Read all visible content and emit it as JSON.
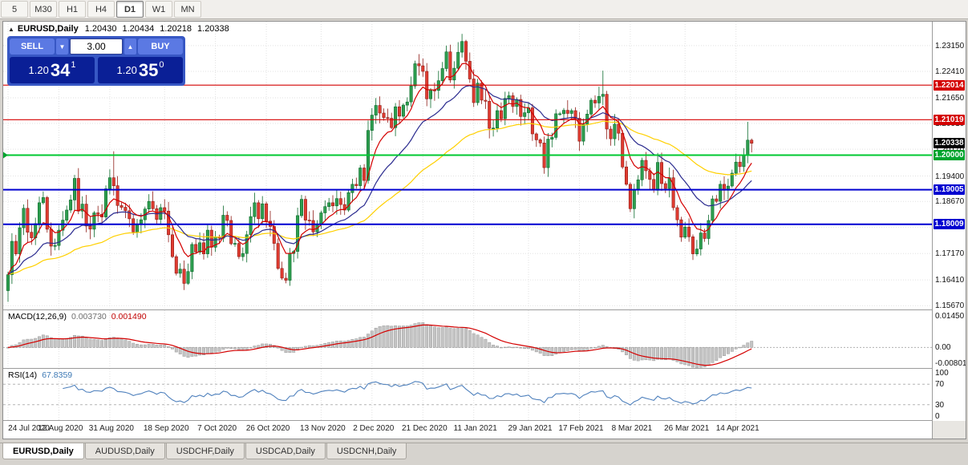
{
  "toolbar": {
    "periods": [
      {
        "label": "5",
        "active": false
      },
      {
        "label": "M30",
        "active": false
      },
      {
        "label": "H1",
        "active": false
      },
      {
        "label": "H4",
        "active": false
      },
      {
        "label": "D1",
        "active": true
      },
      {
        "label": "W1",
        "active": false
      },
      {
        "label": "MN",
        "active": false
      }
    ]
  },
  "chart_header": {
    "collapse_arrow": "▲",
    "symbol": "EURUSD,Daily",
    "open": "1.20430",
    "high": "1.20434",
    "low": "1.20218",
    "close": "1.20338"
  },
  "trade_panel": {
    "sell_label": "SELL",
    "buy_label": "BUY",
    "volume": "3.00",
    "vol_down_icon": "▼",
    "vol_up_icon": "▲",
    "sell_price": {
      "prefix": "1.20",
      "big": "34",
      "sup": "1"
    },
    "buy_price": {
      "prefix": "1.20",
      "big": "35",
      "sup": "0"
    }
  },
  "price_axis": {
    "ticks": [
      "1.23150",
      "1.22410",
      "1.21650",
      "1.20910",
      "1.20170",
      "1.19400",
      "1.18670",
      "1.17930",
      "1.17170",
      "1.16410",
      "1.15670"
    ],
    "badges": [
      {
        "value": "1.22014",
        "color": "#d40000"
      },
      {
        "value": "1.21019",
        "color": "#d40000"
      },
      {
        "value": "1.20338",
        "color": "#000000"
      },
      {
        "value": "1.20000",
        "color": "#00a42e"
      },
      {
        "value": "1.19005",
        "color": "#0000d0"
      },
      {
        "value": "1.18009",
        "color": "#0000d0"
      }
    ]
  },
  "indicator_headers": {
    "macd": {
      "label": "MACD(12,26,9)",
      "value_main": "0.003730",
      "value_signal": "0.001490"
    },
    "rsi": {
      "label": "RSI(14)",
      "value": "67.8359"
    }
  },
  "macd_axis": [
    "0.01450",
    "0.00",
    "-0.00801"
  ],
  "rsi_axis": [
    "100",
    "70",
    "30",
    "0"
  ],
  "date_axis": [
    {
      "text": "24 Jul 2020",
      "i": 0
    },
    {
      "text": "12 Aug 2020",
      "i": 13
    },
    {
      "text": "31 Aug 2020",
      "i": 26
    },
    {
      "text": "18 Sep 2020",
      "i": 40
    },
    {
      "text": "7 Oct 2020",
      "i": 53
    },
    {
      "text": "26 Oct 2020",
      "i": 66
    },
    {
      "text": "13 Nov 2020",
      "i": 80
    },
    {
      "text": "2 Dec 2020",
      "i": 93
    },
    {
      "text": "21 Dec 2020",
      "i": 106
    },
    {
      "text": "11 Jan 2021",
      "i": 119
    },
    {
      "text": "29 Jan 2021",
      "i": 133
    },
    {
      "text": "17 Feb 2021",
      "i": 146
    },
    {
      "text": "8 Mar 2021",
      "i": 159
    },
    {
      "text": "26 Mar 2021",
      "i": 173
    },
    {
      "text": "14 Apr 2021",
      "i": 186
    }
  ],
  "tabs": [
    {
      "label": "EURUSD,Daily",
      "active": true
    },
    {
      "label": "AUDUSD,Daily",
      "active": false
    },
    {
      "label": "USDCHF,Daily",
      "active": false
    },
    {
      "label": "USDCAD,Daily",
      "active": false
    },
    {
      "label": "USDCNH,Daily",
      "active": false
    }
  ],
  "chart_data": {
    "type": "candlestick",
    "symbol": "EURUSD",
    "timeframe": "Daily",
    "title": "EURUSD,Daily",
    "y_range": [
      1.1556,
      1.2384
    ],
    "first_open": 1.161,
    "closes": [
      1.1656,
      1.1752,
      1.1716,
      1.1791,
      1.1847,
      1.1778,
      1.1762,
      1.1803,
      1.1863,
      1.1878,
      1.1787,
      1.1738,
      1.174,
      1.1784,
      1.1813,
      1.1842,
      1.1871,
      1.1933,
      1.1839,
      1.1859,
      1.1796,
      1.1787,
      1.1834,
      1.183,
      1.1822,
      1.1903,
      1.1935,
      1.1912,
      1.1855,
      1.185,
      1.184,
      1.1817,
      1.1779,
      1.1802,
      1.1814,
      1.1845,
      1.1867,
      1.1846,
      1.1815,
      1.1849,
      1.1839,
      1.1771,
      1.1708,
      1.166,
      1.1672,
      1.1631,
      1.1665,
      1.1743,
      1.1721,
      1.1748,
      1.1716,
      1.1784,
      1.1735,
      1.1765,
      1.1761,
      1.1827,
      1.1812,
      1.1745,
      1.1746,
      1.1708,
      1.1717,
      1.1771,
      1.1823,
      1.1863,
      1.1817,
      1.186,
      1.181,
      1.1795,
      1.1746,
      1.1674,
      1.1646,
      1.164,
      1.1717,
      1.1723,
      1.1826,
      1.1873,
      1.1813,
      1.1812,
      1.1779,
      1.1802,
      1.1834,
      1.1852,
      1.1863,
      1.1854,
      1.1875,
      1.1858,
      1.1842,
      1.1892,
      1.1916,
      1.1912,
      1.1963,
      1.1927,
      1.2071,
      1.2115,
      1.2143,
      1.2121,
      1.2108,
      1.2106,
      1.2079,
      1.2139,
      1.2112,
      1.2144,
      1.2153,
      1.2199,
      1.2263,
      1.2257,
      1.2241,
      1.2162,
      1.2187,
      1.2186,
      1.2214,
      1.2249,
      1.2297,
      1.2216,
      1.225,
      1.2296,
      1.2327,
      1.227,
      1.2219,
      1.2151,
      1.2207,
      1.2158,
      1.2155,
      1.2077,
      1.2078,
      1.2128,
      1.2105,
      1.2163,
      1.2171,
      1.214,
      1.216,
      1.2111,
      1.2122,
      1.2136,
      1.2061,
      1.2044,
      1.2035,
      1.1964,
      1.2046,
      1.2051,
      1.2119,
      1.2119,
      1.2129,
      1.212,
      1.2128,
      1.2106,
      1.204,
      1.2089,
      1.2118,
      1.2158,
      1.215,
      1.2169,
      1.2175,
      1.2075,
      1.2047,
      1.2089,
      1.2063,
      1.1966,
      1.1916,
      1.1846,
      1.19,
      1.1929,
      1.1985,
      1.1955,
      1.193,
      1.1899,
      1.1979,
      1.1918,
      1.1904,
      1.1935,
      1.1849,
      1.1814,
      1.1764,
      1.1793,
      1.1765,
      1.1716,
      1.173,
      1.1776,
      1.176,
      1.1812,
      1.1874,
      1.1867,
      1.1916,
      1.1899,
      1.1911,
      1.1948,
      1.198,
      1.1967,
      1.2,
      1.2043,
      1.2034
    ],
    "wick_overrides": {
      "0": {
        "low": 1.1578
      },
      "27": {
        "high": 1.2011
      },
      "45": {
        "low": 1.1612
      },
      "116": {
        "high": 1.2349
      },
      "152": {
        "high": 1.2243
      },
      "189": {
        "high": 1.2096
      }
    },
    "hlines": [
      {
        "price": 1.22014,
        "color": "#d40000",
        "width": 1.2
      },
      {
        "price": 1.21019,
        "color": "#d40000",
        "width": 1.2
      },
      {
        "price": 1.2,
        "color": "#00c832",
        "width": 2
      },
      {
        "price": 1.19005,
        "color": "#0000d0",
        "width": 2
      },
      {
        "price": 1.18009,
        "color": "#0000d0",
        "width": 2
      }
    ],
    "current_price": 1.20338,
    "up_color": "#2e9e4f",
    "up_border": "#0c6b2d",
    "down_color": "#e03c31",
    "down_border": "#8f1d18",
    "mas": [
      {
        "period": 55,
        "color": "#ffd000"
      },
      {
        "period": 21,
        "color": "#2b2b8f"
      },
      {
        "period": 8,
        "color": "#d40000"
      }
    ],
    "macd": {
      "fast": 12,
      "slow": 26,
      "signal_period": 9,
      "range": [
        -0.00801,
        0.0145
      ],
      "hist_fill": "#c4c4c4",
      "hist_stroke": "#9a9a9a",
      "signal_color": "#d40000"
    },
    "rsi": {
      "period": 14,
      "color": "#4f81bd",
      "levels": [
        70,
        30
      ]
    },
    "date_tick_indices": [
      0,
      13,
      26,
      40,
      53,
      66,
      80,
      93,
      106,
      119,
      133,
      146,
      159,
      173,
      186
    ],
    "layout": {
      "candle_spacing": 4.88,
      "x_offset": 6,
      "body_width": 3.4
    }
  }
}
